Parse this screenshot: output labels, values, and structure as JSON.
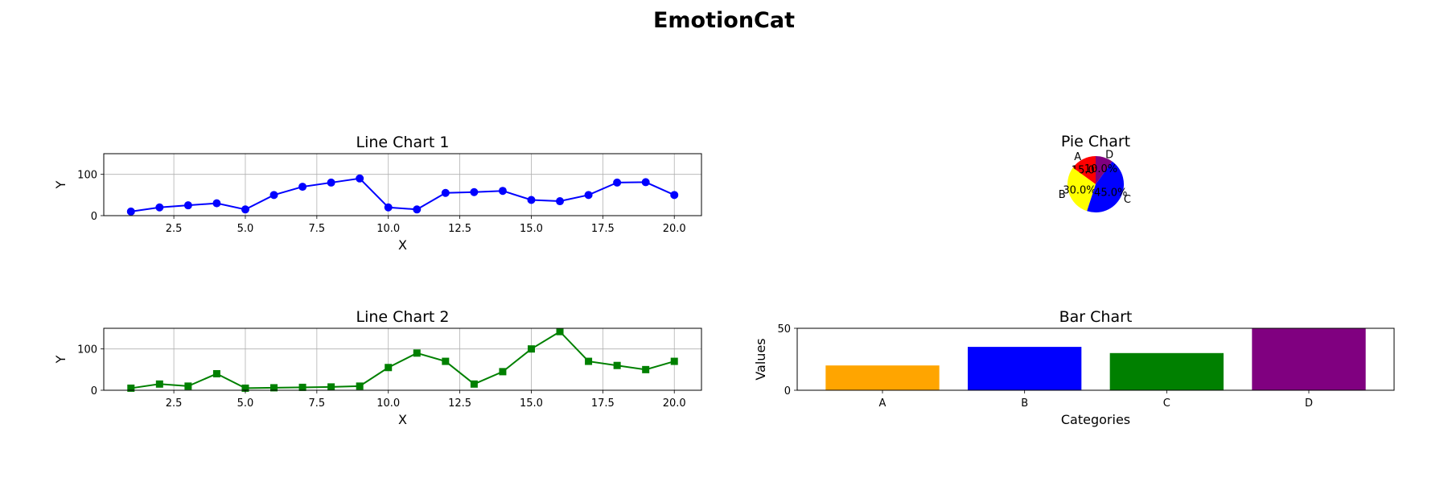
{
  "suptitle": "EmotionCat",
  "chart_data": [
    {
      "type": "line",
      "title": "Line Chart 1",
      "xlabel": "X",
      "ylabel": "Y",
      "x": [
        1,
        2,
        3,
        4,
        5,
        6,
        7,
        8,
        9,
        10,
        11,
        12,
        13,
        14,
        15,
        16,
        17,
        18,
        19,
        20
      ],
      "series": [
        {
          "values": [
            10,
            20,
            25,
            30,
            15,
            50,
            70,
            80,
            90,
            20,
            15,
            55,
            57,
            60,
            38,
            35,
            50,
            80,
            81,
            50
          ],
          "color": "#0000ff",
          "marker": "circle"
        }
      ],
      "xlim": [
        0.05,
        20.95
      ],
      "ylim": [
        0,
        150
      ],
      "xticks": [
        2.5,
        5.0,
        7.5,
        10.0,
        12.5,
        15.0,
        17.5,
        20.0
      ],
      "xticklabels": [
        "2.5",
        "5.0",
        "7.5",
        "10.0",
        "12.5",
        "15.0",
        "17.5",
        "20.0"
      ],
      "yticks": [
        0,
        100
      ],
      "yticklabels": [
        "0",
        "100"
      ],
      "grid": true
    },
    {
      "type": "line",
      "title": "Line Chart 2",
      "xlabel": "X",
      "ylabel": "Y",
      "x": [
        1,
        2,
        3,
        4,
        5,
        6,
        7,
        8,
        9,
        10,
        11,
        12,
        13,
        14,
        15,
        16,
        17,
        18,
        19,
        20
      ],
      "series": [
        {
          "values": [
            5,
            15,
            10,
            40,
            5,
            6,
            7,
            8,
            10,
            55,
            90,
            70,
            15,
            45,
            100,
            142,
            70,
            60,
            50,
            70
          ],
          "color": "#008000",
          "marker": "square"
        }
      ],
      "xlim": [
        0.05,
        20.95
      ],
      "ylim": [
        0,
        150
      ],
      "xticks": [
        2.5,
        5.0,
        7.5,
        10.0,
        12.5,
        15.0,
        17.5,
        20.0
      ],
      "xticklabels": [
        "2.5",
        "5.0",
        "7.5",
        "10.0",
        "12.5",
        "15.0",
        "17.5",
        "20.0"
      ],
      "yticks": [
        0,
        100
      ],
      "yticklabels": [
        "0",
        "100"
      ],
      "grid": true
    },
    {
      "type": "pie",
      "title": "Pie Chart",
      "labels": [
        "A",
        "B",
        "C",
        "D"
      ],
      "values": [
        15,
        30,
        45,
        10
      ],
      "autopct": [
        "15.0%",
        "30.0%",
        "45.0%",
        "10.0%"
      ],
      "colors": [
        "#ff0000",
        "#ffff00",
        "#0000ff",
        "#800080"
      ]
    },
    {
      "type": "bar",
      "title": "Bar Chart",
      "xlabel": "Categories",
      "ylabel": "Values",
      "categories": [
        "A",
        "B",
        "C",
        "D"
      ],
      "values": [
        20,
        35,
        30,
        50
      ],
      "colors": [
        "#ffa500",
        "#0000ff",
        "#008000",
        "#800080"
      ],
      "ylim": [
        0,
        50
      ],
      "yticks": [
        0,
        50
      ],
      "yticklabels": [
        "0",
        "50"
      ],
      "grid": false
    }
  ]
}
